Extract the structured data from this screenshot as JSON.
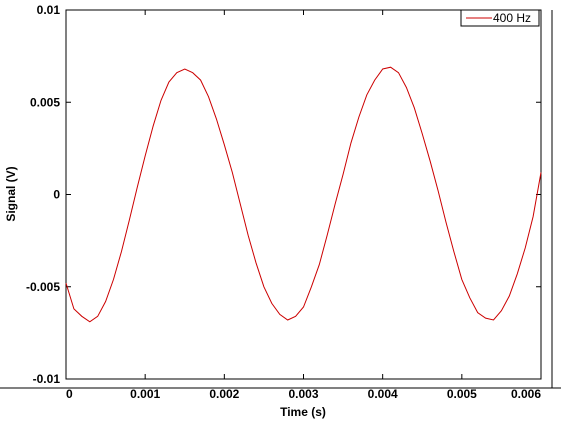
{
  "chart_data": {
    "type": "line",
    "title": "",
    "xlabel": "Time (s)",
    "ylabel": "Signal (V)",
    "xlim": [
      0,
      0.006
    ],
    "ylim": [
      -0.01,
      0.01
    ],
    "x_ticks": [
      0,
      0.001,
      0.002,
      0.003,
      0.004,
      0.005,
      0.006
    ],
    "x_tick_labels": [
      "0",
      "0.001",
      "0.002",
      "0.003",
      "0.004",
      "0.005",
      "0.006"
    ],
    "y_ticks": [
      -0.01,
      -0.005,
      0,
      0.005,
      0.01
    ],
    "y_tick_labels": [
      "-0.01",
      "-0.005",
      "0",
      "0.005",
      "0.01"
    ],
    "grid": false,
    "legend_position": "top-right",
    "series": [
      {
        "name": "400 Hz",
        "color": "#cc0000",
        "x": [
          0,
          0.0001,
          0.0002,
          0.0003,
          0.0004,
          0.0005,
          0.0006,
          0.0007,
          0.0008,
          0.0009,
          0.001,
          0.0011,
          0.0012,
          0.0013,
          0.0014,
          0.0015,
          0.0016,
          0.0017,
          0.0018,
          0.0019,
          0.002,
          0.0021,
          0.0022,
          0.0023,
          0.0024,
          0.0025,
          0.0026,
          0.0027,
          0.0028,
          0.0029,
          0.003,
          0.0031,
          0.0032,
          0.0033,
          0.0034,
          0.0035,
          0.0036,
          0.0037,
          0.0038,
          0.0039,
          0.004,
          0.0041,
          0.0042,
          0.0043,
          0.0044,
          0.0045,
          0.0046,
          0.0047,
          0.0048,
          0.0049,
          0.005,
          0.0051,
          0.0052,
          0.0053,
          0.0054,
          0.0055,
          0.0056,
          0.0057,
          0.0058,
          0.0059,
          0.006
        ],
        "y": [
          -0.0048,
          -0.0062,
          -0.0066,
          -0.0069,
          -0.0066,
          -0.0058,
          -0.0046,
          -0.0031,
          -0.0014,
          0.0004,
          0.0021,
          0.0037,
          0.0051,
          0.0061,
          0.0066,
          0.0068,
          0.0066,
          0.0062,
          0.0053,
          0.0041,
          0.0027,
          0.0012,
          -0.0005,
          -0.0022,
          -0.0037,
          -0.005,
          -0.0059,
          -0.0065,
          -0.0068,
          -0.0066,
          -0.0061,
          -0.005,
          -0.0038,
          -0.0022,
          -0.0005,
          0.0011,
          0.0028,
          0.0042,
          0.0054,
          0.0062,
          0.0068,
          0.0069,
          0.0066,
          0.0058,
          0.0047,
          0.0033,
          0.0018,
          0.0002,
          -0.0015,
          -0.0031,
          -0.0046,
          -0.0056,
          -0.0064,
          -0.0067,
          -0.0068,
          -0.0063,
          -0.0055,
          -0.0043,
          -0.0029,
          -0.0012,
          0.0012
        ]
      }
    ]
  }
}
